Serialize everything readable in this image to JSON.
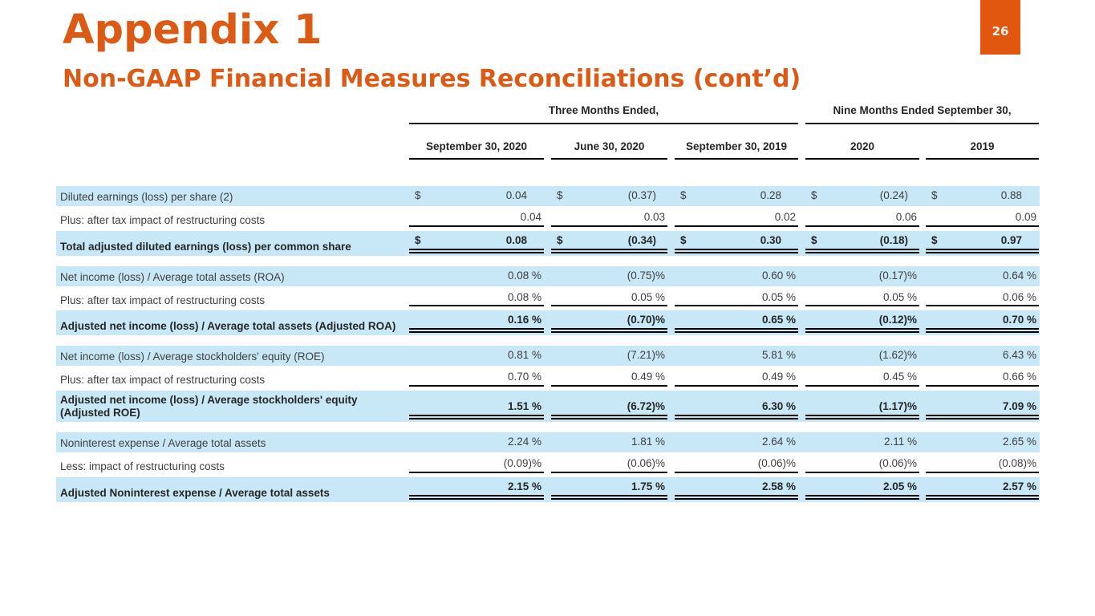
{
  "slide": {
    "title": "Appendix 1",
    "subtitle": "Non-GAAP Financial Measures Reconciliations (cont’d)",
    "page_number": "26"
  },
  "colors": {
    "accent_orange": "#DB5A15",
    "page_box_orange": "#E2570F",
    "stripe_blue": "#C8E7F7",
    "line_black": "#000000",
    "text_dark": "#3F3F3F"
  },
  "table": {
    "currency_symbol": "$",
    "group_headers": [
      {
        "label": "Three Months Ended,",
        "span": 3
      },
      {
        "label": "Nine Months Ended September 30,",
        "span": 2
      }
    ],
    "column_headers": [
      "September 30, 2020",
      "June 30, 2020",
      "September 30, 2019",
      "2020",
      "2019"
    ],
    "sections": [
      {
        "rows": [
          {
            "label": "Diluted earnings (loss)  per share (2)",
            "style": "plain",
            "shade": true,
            "dollar": true,
            "bold": false,
            "values": [
              "0.04",
              "(0.37)",
              "0.28",
              "(0.24)",
              "0.88"
            ]
          },
          {
            "label": "Plus: after tax impact of restructuring costs",
            "style": "underline",
            "shade": false,
            "dollar": false,
            "bold": false,
            "values": [
              "0.04",
              "0.03",
              "0.02",
              "0.06",
              "0.09"
            ]
          },
          {
            "label": "Total adjusted diluted earnings (loss) per common share",
            "style": "total",
            "shade": true,
            "dollar": true,
            "bold": true,
            "values": [
              "0.08",
              "(0.34)",
              "0.30",
              "(0.18)",
              "0.97"
            ]
          }
        ]
      },
      {
        "rows": [
          {
            "label": "Net income (loss) / Average total assets (ROA)",
            "style": "plain",
            "shade": true,
            "dollar": false,
            "bold": false,
            "values": [
              "0.08 %",
              "(0.75)%",
              "0.60 %",
              "(0.17)%",
              "0.64 %"
            ]
          },
          {
            "label": "Plus: after tax impact of restructuring costs",
            "style": "underline",
            "shade": false,
            "dollar": false,
            "bold": false,
            "values": [
              "0.08 %",
              "0.05 %",
              "0.05 %",
              "0.05 %",
              "0.06 %"
            ]
          },
          {
            "label": "Adjusted net income (loss) / Average total assets (Adjusted ROA)",
            "style": "total",
            "shade": true,
            "dollar": false,
            "bold": true,
            "values": [
              "0.16 %",
              "(0.70)%",
              "0.65 %",
              "(0.12)%",
              "0.70 %"
            ]
          }
        ]
      },
      {
        "rows": [
          {
            "label": "Net income (loss) / Average stockholders' equity (ROE)",
            "style": "plain",
            "shade": true,
            "dollar": false,
            "bold": false,
            "values": [
              "0.81 %",
              "(7.21)%",
              "5.81 %",
              "(1.62)%",
              "6.43 %"
            ]
          },
          {
            "label": "Plus: after tax impact of restructuring costs",
            "style": "underline",
            "shade": false,
            "dollar": false,
            "bold": false,
            "values": [
              "0.70 %",
              "0.49 %",
              "0.49 %",
              "0.45 %",
              "0.66 %"
            ]
          },
          {
            "label": "Adjusted net income (loss) / Average stockholders' equity (Adjusted ROE)",
            "style": "total",
            "shade": true,
            "dollar": false,
            "bold": true,
            "values": [
              "1.51 %",
              "(6.72)%",
              "6.30 %",
              "(1.17)%",
              "7.09 %"
            ]
          }
        ]
      },
      {
        "rows": [
          {
            "label": "Noninterest expense / Average total assets",
            "style": "plain",
            "shade": true,
            "dollar": false,
            "bold": false,
            "values": [
              "2.24 %",
              "1.81 %",
              "2.64 %",
              "2.11 %",
              "2.65 %"
            ]
          },
          {
            "label": "Less: impact of restructuring costs",
            "style": "underline",
            "shade": false,
            "dollar": false,
            "bold": false,
            "values": [
              "(0.09)%",
              "(0.06)%",
              "(0.06)%",
              "(0.06)%",
              "(0.08)%"
            ]
          },
          {
            "label": "Adjusted Noninterest expense / Average total assets",
            "style": "total",
            "shade": true,
            "dollar": false,
            "bold": true,
            "values": [
              "2.15 %",
              "1.75 %",
              "2.58 %",
              "2.05 %",
              "2.57 %"
            ]
          }
        ]
      }
    ]
  }
}
